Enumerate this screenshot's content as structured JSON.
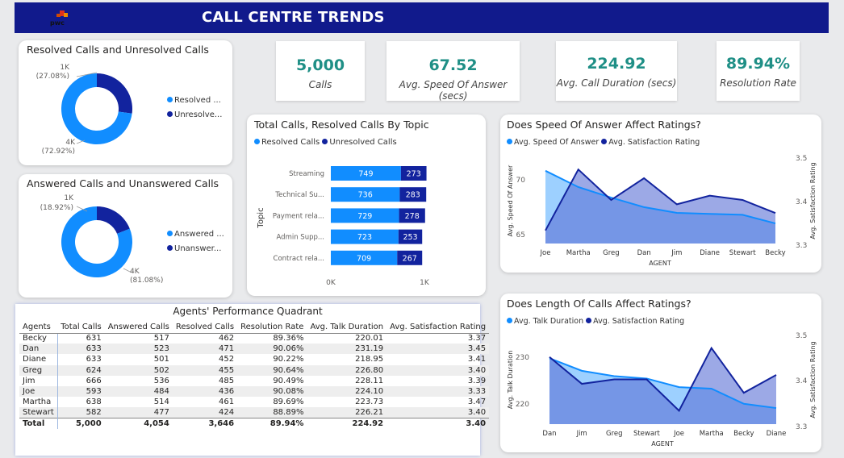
{
  "header": {
    "title": "CALL CENTRE TRENDS",
    "logo_text": "pwc"
  },
  "colors": {
    "light": "#118dff",
    "dark": "#12239e",
    "teal": "#1f8f86",
    "header": "#111a8c"
  },
  "kpis": [
    {
      "value": "5,000",
      "label": "Calls"
    },
    {
      "value": "67.52",
      "label": "Avg. Speed Of Answer (secs)"
    },
    {
      "value": "224.92",
      "label": "Avg. Call Duration (secs)"
    },
    {
      "value": "89.94%",
      "label": "Resolution Rate"
    }
  ],
  "resolved_donut": {
    "title": "Resolved Calls and Unresolved Calls",
    "legend": [
      "Resolved ...",
      "Unresolve..."
    ],
    "small_label": "1K",
    "small_pct": "(27.08%)",
    "big_label": "4K",
    "big_pct": "(72.92%)"
  },
  "answered_donut": {
    "title": "Answered Calls and Unanswered Calls",
    "legend": [
      "Answered ...",
      "Unanswer..."
    ],
    "small_label": "1K",
    "small_pct": "(18.92%)",
    "big_label": "4K",
    "big_pct": "(81.08%)"
  },
  "topic_chart": {
    "title": "Total Calls, Resolved Calls By Topic",
    "legend": [
      "Resolved Calls",
      "Unresolved Calls"
    ],
    "axis_title": "Topic",
    "x_ticks": [
      "0K",
      "1K"
    ]
  },
  "speed_chart": {
    "title": "Does Speed Of Answer Affect Ratings?",
    "legend": [
      "Avg. Speed Of Answer",
      "Avg. Satisfaction Rating"
    ],
    "ylabel_left": "Avg. Speed Of Answer",
    "ylabel_right": "Avg. Satisfaction Rating",
    "xlabel": "AGENT",
    "left_ticks": [
      "70",
      "65"
    ],
    "right_ticks": [
      "3.5",
      "3.4",
      "3.3"
    ]
  },
  "length_chart": {
    "title": "Does Length Of Calls Affect Ratings?",
    "legend": [
      "Avg. Talk Duration",
      "Avg. Satisfaction Rating"
    ],
    "ylabel_left": "Avg. Talk Duration",
    "ylabel_right": "Avg. Satisfaction Rating",
    "xlabel": "AGENT",
    "left_ticks": [
      "230",
      "220"
    ],
    "right_ticks": [
      "3.5",
      "3.4",
      "3.3"
    ]
  },
  "table": {
    "title": "Agents' Performance Quadrant",
    "headers": [
      "Agents",
      "Total Calls",
      "Answered Calls",
      "Resolved Calls",
      "Resolution Rate",
      "Avg. Talk Duration",
      "Avg. Satisfaction Rating"
    ],
    "rows": [
      [
        "Becky",
        "631",
        "517",
        "462",
        "89.36%",
        "220.01",
        "3.37"
      ],
      [
        "Dan",
        "633",
        "523",
        "471",
        "90.06%",
        "231.19",
        "3.45"
      ],
      [
        "Diane",
        "633",
        "501",
        "452",
        "90.22%",
        "218.95",
        "3.41"
      ],
      [
        "Greg",
        "624",
        "502",
        "455",
        "90.64%",
        "226.80",
        "3.40"
      ],
      [
        "Jim",
        "666",
        "536",
        "485",
        "90.49%",
        "228.11",
        "3.39"
      ],
      [
        "Joe",
        "593",
        "484",
        "436",
        "90.08%",
        "224.10",
        "3.33"
      ],
      [
        "Martha",
        "638",
        "514",
        "461",
        "89.69%",
        "223.73",
        "3.47"
      ],
      [
        "Stewart",
        "582",
        "477",
        "424",
        "88.89%",
        "226.21",
        "3.40"
      ]
    ],
    "total": [
      "Total",
      "5,000",
      "4,054",
      "3,646",
      "89.94%",
      "224.92",
      "3.40"
    ]
  },
  "chart_data": [
    {
      "type": "pie",
      "title": "Resolved Calls and Unresolved Calls",
      "categories": [
        "Resolved Calls",
        "Unresolved Calls"
      ],
      "values": [
        72.92,
        27.08
      ]
    },
    {
      "type": "pie",
      "title": "Answered Calls and Unanswered Calls",
      "categories": [
        "Answered Calls",
        "Unanswered Calls"
      ],
      "values": [
        81.08,
        18.92
      ]
    },
    {
      "type": "bar",
      "title": "Total Calls, Resolved Calls By Topic",
      "categories": [
        "Streaming",
        "Technical Su...",
        "Payment rela...",
        "Admin Supp...",
        "Contract rela..."
      ],
      "series": [
        {
          "name": "Resolved Calls",
          "values": [
            749,
            736,
            729,
            723,
            709
          ]
        },
        {
          "name": "Unresolved Calls",
          "values": [
            273,
            283,
            278,
            253,
            267
          ]
        }
      ],
      "xlim": [
        0,
        1000
      ],
      "ylabel": "Topic"
    },
    {
      "type": "area",
      "title": "Does Speed Of Answer Affect Ratings?",
      "categories": [
        "Joe",
        "Martha",
        "Greg",
        "Dan",
        "Jim",
        "Diane",
        "Stewart",
        "Becky"
      ],
      "series": [
        {
          "name": "Avg. Speed Of Answer",
          "values": [
            71.0,
            69.3,
            68.2,
            67.2,
            66.6,
            66.5,
            66.4,
            65.5
          ],
          "ylim": [
            63.4,
            72.5
          ]
        },
        {
          "name": "Avg. Satisfaction Rating",
          "values": [
            3.33,
            3.47,
            3.4,
            3.45,
            3.39,
            3.41,
            3.4,
            3.37
          ],
          "ylim": [
            3.3,
            3.5
          ]
        }
      ],
      "xlabel": "AGENT",
      "ylabel": "Avg. Speed Of Answer",
      "ylabel_right": "Avg. Satisfaction Rating"
    },
    {
      "type": "area",
      "title": "Does Length Of Calls Affect Ratings?",
      "categories": [
        "Dan",
        "Jim",
        "Greg",
        "Stewart",
        "Joe",
        "Martha",
        "Becky",
        "Diane"
      ],
      "series": [
        {
          "name": "Avg. Talk Duration",
          "values": [
            231.19,
            228.11,
            226.8,
            226.21,
            224.1,
            223.73,
            220.01,
            218.95
          ],
          "ylim": [
            215,
            237
          ]
        },
        {
          "name": "Avg. Satisfaction Rating",
          "values": [
            3.45,
            3.39,
            3.4,
            3.4,
            3.33,
            3.47,
            3.37,
            3.41
          ],
          "ylim": [
            3.3,
            3.5
          ]
        }
      ],
      "xlabel": "AGENT",
      "ylabel": "Avg. Talk Duration",
      "ylabel_right": "Avg. Satisfaction Rating"
    }
  ]
}
